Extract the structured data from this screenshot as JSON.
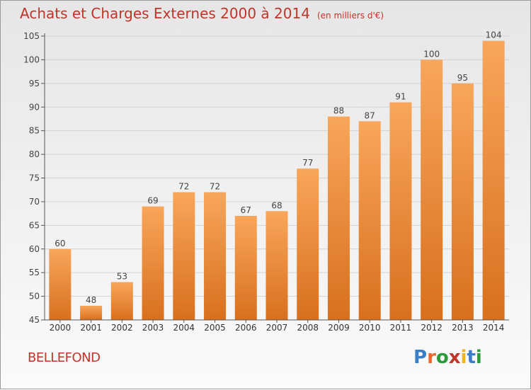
{
  "chart_title": "Achats et Charges Externes 2000 à 2014",
  "chart_subtitle": "(en milliers d'€)",
  "place_name": "BELLEFOND",
  "logo": {
    "text": "Proxiti",
    "letter_colors": [
      "#3a7ec8",
      "#e8692a",
      "#2a9a3a",
      "#c0342a",
      "#f0b21e",
      "#3a7ec8",
      "#2a9a3a"
    ]
  },
  "colors": {
    "bar_light": "#f8a65a",
    "bar_dark": "#d8701e",
    "title": "#c0342a",
    "axis": "#555555"
  },
  "chart_data": {
    "type": "bar",
    "title": "Achats et Charges Externes 2000 à 2014",
    "subtitle": "(en milliers d'€)",
    "categories": [
      "2000",
      "2001",
      "2002",
      "2003",
      "2004",
      "2005",
      "2006",
      "2007",
      "2008",
      "2009",
      "2010",
      "2011",
      "2012",
      "2013",
      "2014"
    ],
    "values": [
      60,
      48,
      53,
      69,
      72,
      72,
      67,
      68,
      77,
      88,
      87,
      91,
      100,
      95,
      104
    ],
    "ylim": [
      45,
      105
    ],
    "yticks": [
      45,
      50,
      55,
      60,
      65,
      70,
      75,
      80,
      85,
      90,
      95,
      100,
      105
    ],
    "grid": true,
    "xlabel": "",
    "ylabel": ""
  }
}
